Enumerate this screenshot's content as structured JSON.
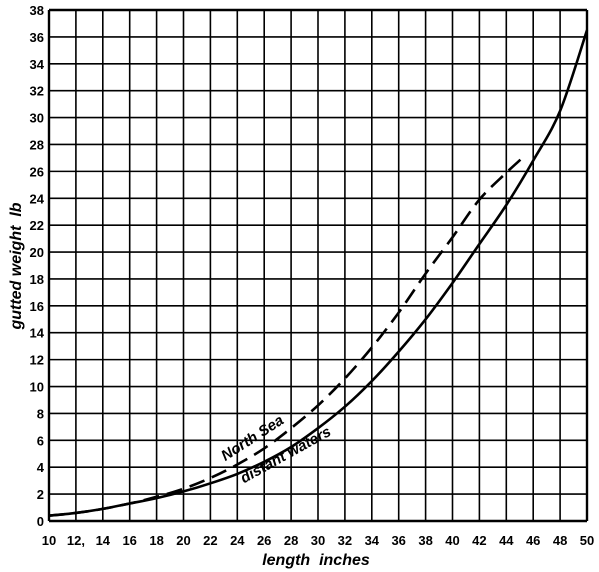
{
  "chart_data": {
    "type": "line",
    "xlabel": "length  inches",
    "ylabel": "gutted weight  lb",
    "xlim": [
      10,
      50
    ],
    "ylim": [
      0,
      38
    ],
    "grid": true,
    "x_ticks": [
      "10",
      "12,",
      "14",
      "16",
      "18",
      "20",
      "22",
      "24",
      "26",
      "28",
      "30",
      "32",
      "34",
      "36",
      "38",
      "40",
      "42",
      "44",
      "46",
      "48",
      "50"
    ],
    "y_ticks": [
      "0",
      "2",
      "4",
      "6",
      "8",
      "10",
      "12",
      "14",
      "16",
      "18",
      "20",
      "22",
      "24",
      "26",
      "28",
      "30",
      "32",
      "34",
      "36",
      "38"
    ],
    "series": [
      {
        "name": "North Sea",
        "style": "dashed",
        "color": "#000000",
        "x": [
          10,
          12,
          14,
          16,
          18,
          20,
          22,
          24,
          26,
          28,
          30,
          32,
          34,
          36,
          38,
          40,
          42,
          44,
          45.2
        ],
        "y": [
          0.4,
          0.6,
          0.9,
          1.3,
          1.8,
          2.4,
          3.2,
          4.2,
          5.4,
          6.9,
          8.6,
          10.6,
          12.9,
          15.5,
          18.4,
          21.1,
          23.9,
          25.9,
          27.0
        ]
      },
      {
        "name": "distant waters",
        "style": "solid",
        "color": "#000000",
        "x": [
          10,
          12,
          14,
          16,
          18,
          20,
          22,
          24,
          26,
          28,
          30,
          32,
          34,
          36,
          38,
          40,
          42,
          44,
          46,
          48,
          50
        ],
        "y": [
          0.4,
          0.6,
          0.9,
          1.3,
          1.7,
          2.2,
          2.8,
          3.5,
          4.4,
          5.5,
          6.9,
          8.5,
          10.4,
          12.6,
          15.0,
          17.7,
          20.6,
          23.5,
          26.8,
          30.5,
          36.5
        ]
      }
    ]
  }
}
